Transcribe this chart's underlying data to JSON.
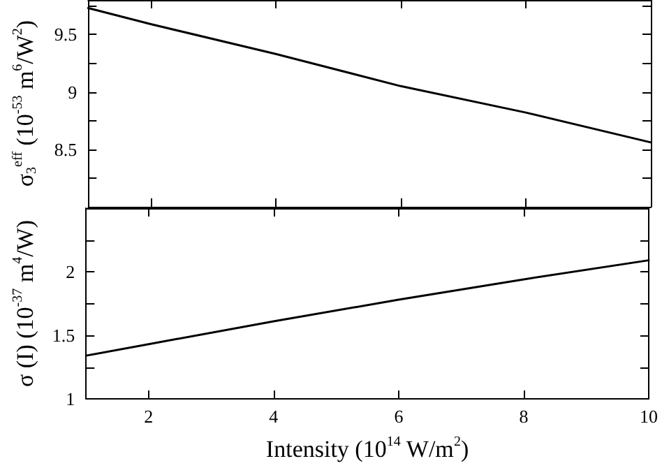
{
  "chart_data": [
    {
      "type": "line",
      "ylabel": "σ$_{3}$$^{eff}$ (10$^{-53}$ m$^{6}$/W$^{2}$)",
      "xlim": [
        1,
        10
      ],
      "xticks": [
        {
          "value": 2,
          "label": null
        },
        {
          "value": 4,
          "label": null
        },
        {
          "value": 6,
          "label": null
        },
        {
          "value": 8,
          "label": null
        },
        {
          "value": 10,
          "label": null
        }
      ],
      "ylim": [
        8,
        9.8
      ],
      "yticks": [
        {
          "value": 8.25,
          "label": null
        },
        8.5,
        {
          "value": 8.75,
          "label": null
        },
        9,
        {
          "value": 9.25,
          "label": null
        },
        9.5,
        {
          "value": 9.75,
          "label": null
        }
      ],
      "tick_labels": "y",
      "grid": false,
      "marker": "none",
      "line_style": "solid",
      "series": [
        {
          "color": "#000000",
          "x": [
            1,
            2,
            4,
            6,
            8,
            10
          ],
          "values": [
            9.73,
            9.59,
            9.33,
            9.05,
            8.82,
            8.56
          ]
        }
      ]
    },
    {
      "type": "line",
      "xlabel": "Intensity (10$^{14}$ W/m$^{2}$)",
      "ylabel": "σ (I) (10$^{-37}$ m$^{4}$/W)",
      "xlim": [
        1,
        10
      ],
      "xticks": [
        2,
        4,
        6,
        8,
        10
      ],
      "ylim": [
        1,
        2.5
      ],
      "yticks": [
        1,
        {
          "value": 1.25,
          "label": null
        },
        1.5,
        {
          "value": 1.75,
          "label": null
        },
        2,
        {
          "value": 2.25,
          "label": null
        }
      ],
      "grid": false,
      "marker": "none",
      "line_style": "solid",
      "series": [
        {
          "color": "#000000",
          "x": [
            1,
            2,
            4,
            6,
            8,
            10
          ],
          "values": [
            1.34,
            1.43,
            1.61,
            1.78,
            1.94,
            2.09
          ]
        }
      ]
    }
  ]
}
